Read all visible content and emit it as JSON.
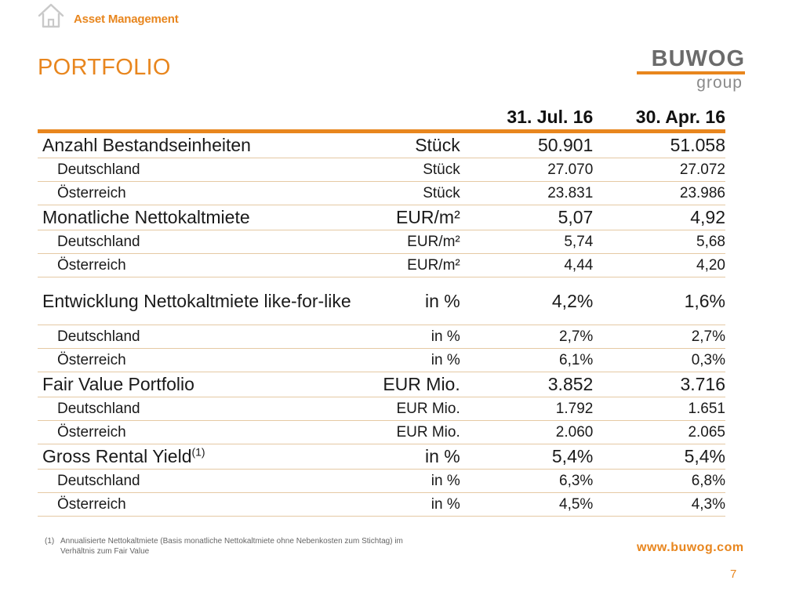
{
  "header": {
    "icon": "house-icon",
    "section_label": "Asset Management",
    "title": "PORTFOLIO"
  },
  "logo": {
    "word": "BUWOG",
    "sub": "group"
  },
  "colors": {
    "accent": "#e8861e",
    "logo_gray": "#6b6b6b"
  },
  "table": {
    "columns": [
      "",
      "",
      "31. Jul. 16",
      "30. Apr. 16"
    ],
    "rows": [
      {
        "level": "main",
        "label": "Anzahl Bestandseinheiten",
        "unit": "Stück",
        "v1": "50.901",
        "v2": "51.058"
      },
      {
        "level": "sub",
        "label": "Deutschland",
        "unit": "Stück",
        "v1": "27.070",
        "v2": "27.072"
      },
      {
        "level": "sub",
        "label": "Österreich",
        "unit": "Stück",
        "v1": "23.831",
        "v2": "23.986"
      },
      {
        "level": "main",
        "label": "Monatliche Nettokaltmiete",
        "unit": "EUR/m²",
        "v1": "5,07",
        "v2": "4,92"
      },
      {
        "level": "sub",
        "label": "Deutschland",
        "unit": "EUR/m²",
        "v1": "5,74",
        "v2": "5,68"
      },
      {
        "level": "sub",
        "label": "Österreich",
        "unit": "EUR/m²",
        "v1": "4,44",
        "v2": "4,20"
      },
      {
        "level": "main",
        "label": "Entwicklung Nettokaltmiete like-for-like",
        "unit": "in %",
        "v1": "4,2%",
        "v2": "1,6%"
      },
      {
        "level": "sub",
        "label": "Deutschland",
        "unit": "in %",
        "v1": "2,7%",
        "v2": "2,7%"
      },
      {
        "level": "sub",
        "label": "Österreich",
        "unit": "in %",
        "v1": "6,1%",
        "v2": "0,3%"
      },
      {
        "level": "main",
        "label": "Fair Value Portfolio",
        "unit": "EUR Mio.",
        "v1": "3.852",
        "v2": "3.716"
      },
      {
        "level": "sub",
        "label": "Deutschland",
        "unit": "EUR Mio.",
        "v1": "1.792",
        "v2": "1.651"
      },
      {
        "level": "sub",
        "label": "Österreich",
        "unit": "EUR Mio.",
        "v1": "2.060",
        "v2": "2.065"
      },
      {
        "level": "main",
        "label": "Gross Rental Yield",
        "sup": "(1)",
        "unit": "in %",
        "v1": "5,4%",
        "v2": "5,4%"
      },
      {
        "level": "sub",
        "label": "Deutschland",
        "unit": "in %",
        "v1": "6,3%",
        "v2": "6,8%"
      },
      {
        "level": "sub",
        "label": "Österreich",
        "unit": "in %",
        "v1": "4,5%",
        "v2": "4,3%"
      }
    ]
  },
  "footnote": {
    "mark": "(1)",
    "text": "Annualisierte Nettokaltmiete (Basis monatliche Nettokaltmiete ohne Nebenkosten zum Stichtag) im Verhältnis zum Fair Value"
  },
  "footer": {
    "website": "www.buwog.com",
    "page_number": "7"
  }
}
